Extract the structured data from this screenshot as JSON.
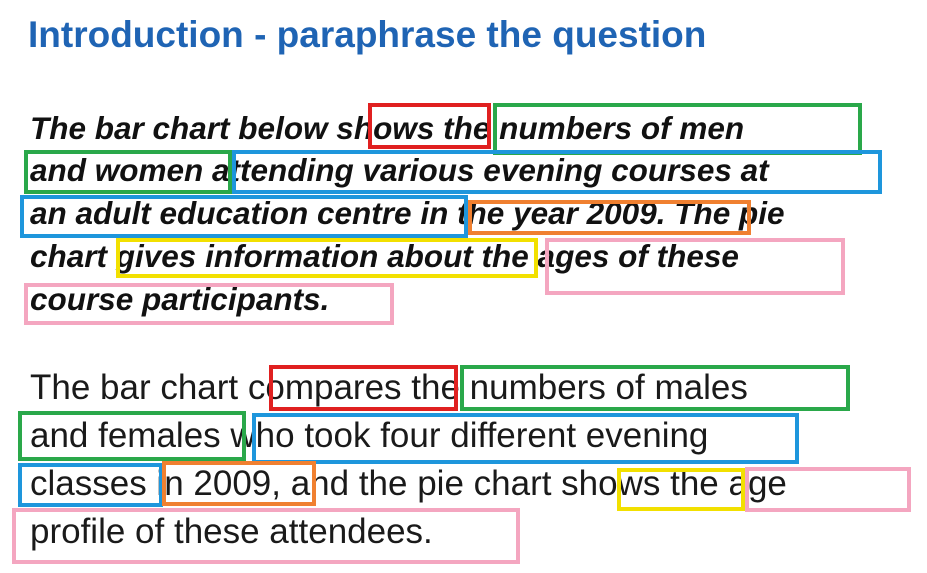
{
  "title": "Introduction - paraphrase the question",
  "question_lines": [
    "The bar chart below shows the numbers of men",
    "and women attending various evening courses at",
    "an adult education centre in the year 2009. The pie",
    "chart gives information about the ages of these",
    "course participants."
  ],
  "answer_lines": [
    "The bar chart compares the numbers of males",
    "and females who took four different evening",
    "classes in 2009, and the pie chart shows the age",
    "profile of these attendees."
  ],
  "highlight_colors": {
    "red": "#e02020",
    "green": "#2aa84a",
    "blue": "#1e96dc",
    "orange": "#f08030",
    "yellow": "#f2e000",
    "pink": "#f4a6c0"
  }
}
